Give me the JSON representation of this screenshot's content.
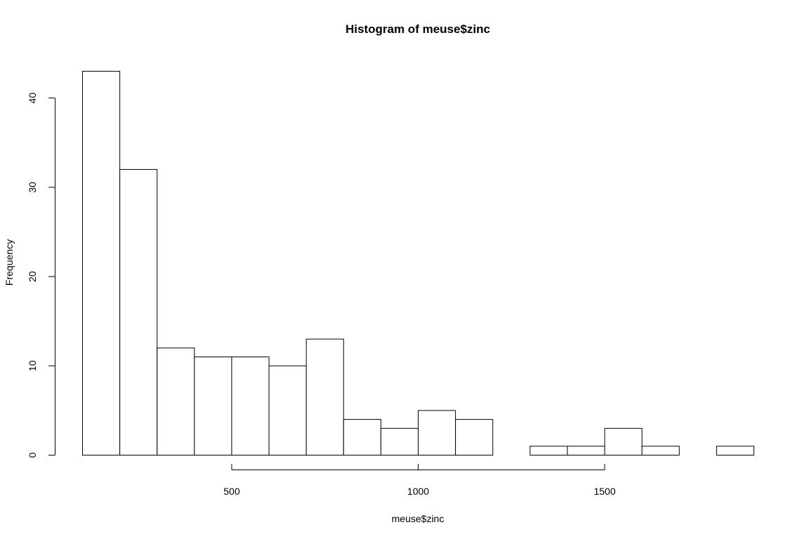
{
  "chart_data": {
    "type": "bar",
    "title": "Histogram of meuse$zinc",
    "xlabel": "meuse$zinc",
    "ylabel": "Frequency",
    "bins": [
      [
        100,
        200
      ],
      [
        200,
        300
      ],
      [
        300,
        400
      ],
      [
        400,
        500
      ],
      [
        500,
        600
      ],
      [
        600,
        700
      ],
      [
        700,
        800
      ],
      [
        800,
        900
      ],
      [
        900,
        1000
      ],
      [
        1000,
        1100
      ],
      [
        1100,
        1200
      ],
      [
        1200,
        1300
      ],
      [
        1300,
        1400
      ],
      [
        1400,
        1500
      ],
      [
        1500,
        1600
      ],
      [
        1600,
        1700
      ],
      [
        1700,
        1800
      ],
      [
        1800,
        1900
      ]
    ],
    "values": [
      43,
      32,
      12,
      11,
      11,
      10,
      13,
      4,
      3,
      5,
      4,
      0,
      1,
      1,
      3,
      1,
      0,
      1
    ],
    "xlim": [
      100,
      1900
    ],
    "ylim": [
      0,
      43
    ],
    "x_ticks": [
      500,
      1000,
      1500
    ],
    "y_ticks": [
      0,
      10,
      20,
      30,
      40
    ],
    "x_tick_labels": [
      "500",
      "1000",
      "1500"
    ],
    "y_tick_labels": [
      "0",
      "10",
      "20",
      "30",
      "40"
    ],
    "grid": false,
    "bar_fill": "#ffffff",
    "bar_stroke": "#000000"
  }
}
